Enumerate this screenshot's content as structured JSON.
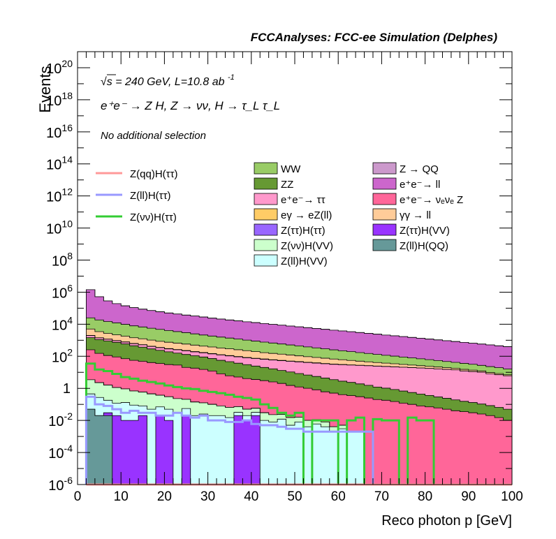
{
  "chart_data": {
    "type": "histogram",
    "title": "FCCAnalyses: FCC-ee Simulation (Delphes)",
    "xlabel": "Reco photon p [GeV]",
    "ylabel": "Events",
    "xlim": [
      0,
      100
    ],
    "ylim": [
      1e-06,
      1e+21
    ],
    "yscale": "log",
    "x_ticks": [
      "0",
      "10",
      "20",
      "30",
      "40",
      "50",
      "60",
      "70",
      "80",
      "90",
      "100"
    ],
    "y_ticks": [
      {
        "value": 1e+20,
        "mantissa": "10",
        "exp": "20"
      },
      {
        "value": 1e+18,
        "mantissa": "10",
        "exp": "18"
      },
      {
        "value": 1e+16,
        "mantissa": "10",
        "exp": "16"
      },
      {
        "value": 100000000000000.0,
        "mantissa": "10",
        "exp": "14"
      },
      {
        "value": 1000000000000.0,
        "mantissa": "10",
        "exp": "12"
      },
      {
        "value": 10000000000.0,
        "mantissa": "10",
        "exp": "10"
      },
      {
        "value": 100000000.0,
        "mantissa": "10",
        "exp": "8"
      },
      {
        "value": 1000000.0,
        "mantissa": "10",
        "exp": "6"
      },
      {
        "value": 10000.0,
        "mantissa": "10",
        "exp": "4"
      },
      {
        "value": 100.0,
        "mantissa": "10",
        "exp": "2"
      },
      {
        "value": 1,
        "mantissa": "1",
        "exp": ""
      },
      {
        "value": 0.01,
        "mantissa": "10",
        "exp": "-2"
      },
      {
        "value": 0.0001,
        "mantissa": "10",
        "exp": "-4"
      },
      {
        "value": 1e-06,
        "mantissa": "10",
        "exp": "-6"
      }
    ],
    "annotations": {
      "energy_prefix": "√s = 240 GeV, L=10.8 ab",
      "energy_sup": "-1",
      "process": "e⁺e⁻ → Z H, Z → νν, H → τ_L τ_L",
      "selection": "No additional selection"
    },
    "legend_signal": [
      {
        "name": "Z(qq)H(ττ)",
        "color": "#ff9999"
      },
      {
        "name": "Z(ll)H(ττ)",
        "color": "#9999ff"
      },
      {
        "name": "Z(νν)H(ττ)",
        "color": "#33cc33"
      }
    ],
    "legend_background_col1": [
      {
        "name": "WW",
        "color": "#99cc66"
      },
      {
        "name": "ZZ",
        "color": "#669933"
      },
      {
        "name": "e⁺e⁻→ ττ",
        "color": "#ff99cc"
      },
      {
        "name": "eγ → eZ(ll)",
        "color": "#ffcc66"
      },
      {
        "name": "Z(ττ)H(ττ)",
        "color": "#9966ff"
      },
      {
        "name": "Z(νν)H(VV)",
        "color": "#ccffcc"
      },
      {
        "name": "Z(ll)H(VV)",
        "color": "#ccffff"
      }
    ],
    "legend_background_col2": [
      {
        "name": "Z → QQ",
        "color": "#cc99cc"
      },
      {
        "name": "e⁺e⁻→ ll",
        "color": "#cc66cc"
      },
      {
        "name": "e⁺e⁻→ νₑνₑ Z",
        "color": "#ff6699"
      },
      {
        "name": "γγ → ll",
        "color": "#ffcc99"
      },
      {
        "name": "Z(ττ)H(VV)",
        "color": "#9933ff"
      },
      {
        "name": "Z(ll)H(QQ)",
        "color": "#669999"
      }
    ],
    "bins": {
      "start": 2,
      "width": 2,
      "count": 49
    },
    "stack_order": [
      "zllhqq",
      "ztthvv",
      "zllhvv",
      "zvvhvv",
      "ztthtt",
      "eeZ",
      "ee_vvZ",
      "zz",
      "eett",
      "zqq",
      "egeZll",
      "ww",
      "ggll",
      "eell"
    ],
    "stack_series": [
      {
        "key": "zllhqq",
        "name": "Z(ll)H(QQ)",
        "color": "#669999",
        "values": [
          0.05,
          0.02,
          0.02,
          0,
          0,
          0,
          0,
          0,
          0,
          0,
          0,
          0,
          0,
          0,
          0,
          0,
          0,
          0,
          0,
          0,
          0,
          0,
          0,
          0,
          0,
          0,
          0,
          0,
          0,
          0,
          0,
          0,
          0,
          0,
          0,
          0,
          0,
          0,
          0,
          0,
          0,
          0,
          0,
          0,
          0,
          0,
          0,
          0,
          0
        ]
      },
      {
        "key": "ztthvv",
        "name": "Z(ττ)H(VV)",
        "color": "#9933ff",
        "values": [
          0,
          0,
          0.01,
          0.02,
          0.01,
          0.01,
          0.02,
          0,
          0.02,
          0.01,
          0,
          0.02,
          0,
          0,
          0,
          0,
          0,
          0.02,
          0.01,
          0.02,
          0,
          0,
          0,
          0,
          0,
          0,
          0,
          0,
          0,
          0,
          0,
          0,
          0,
          0,
          0,
          0,
          0,
          0,
          0,
          0,
          0,
          0,
          0,
          0,
          0,
          0,
          0,
          0,
          0
        ]
      },
      {
        "key": "zllhvv",
        "name": "Z(ll)H(VV)",
        "color": "#ccffff",
        "values": [
          0.4,
          0.25,
          0.15,
          0.1,
          0.12,
          0.08,
          0.06,
          0.05,
          0.05,
          0.04,
          0.03,
          0.035,
          0.02,
          0.025,
          0.02,
          0.02,
          0.015,
          0.012,
          0.01,
          0.012,
          0.01,
          0.008,
          0.012,
          0.005,
          0.008,
          0.004,
          0.006,
          0.004,
          0.002,
          0.003,
          0.002,
          0.002,
          0,
          0,
          0,
          0,
          0,
          0,
          0,
          0,
          0,
          0,
          0,
          0,
          0,
          0,
          0,
          0,
          0
        ]
      },
      {
        "key": "zvvhvv",
        "name": "Z(νν)H(VV)",
        "color": "#ccffcc",
        "values": [
          3,
          2,
          1.4,
          1,
          0.8,
          0.6,
          0.5,
          0.4,
          0.3,
          0.25,
          0.2,
          0.15,
          0.12,
          0.1,
          0.08,
          0.06,
          0.05,
          0.04,
          0.03,
          0.025,
          0.02,
          0.015,
          0.012,
          0.01,
          0.008,
          0.006,
          0.005,
          0.004,
          0.002,
          0.002,
          0,
          0,
          0,
          0,
          0,
          0,
          0,
          0,
          0,
          0,
          0,
          0,
          0,
          0,
          0,
          0,
          0,
          0,
          0
        ]
      },
      {
        "key": "ztthtt",
        "name": "Z(ττ)H(ττ)",
        "color": "#9966ff",
        "values": [
          0,
          0,
          0,
          0,
          0,
          0,
          0,
          0,
          0,
          0,
          0,
          0,
          0,
          0,
          0,
          0,
          0,
          0,
          0,
          0,
          0,
          0,
          0,
          0,
          0,
          0,
          0,
          0,
          0,
          0,
          0,
          0,
          0,
          0,
          0,
          0,
          0,
          0,
          0,
          0,
          0,
          0,
          0,
          0,
          0,
          0,
          0,
          0,
          0
        ]
      },
      {
        "key": "eeZ",
        "name": "eγ → eZ(ll)",
        "color": "#ffcc66",
        "values": [
          0,
          0,
          0,
          0,
          0,
          0,
          0,
          0,
          0,
          0,
          0,
          0,
          0,
          0,
          0,
          0,
          0,
          0,
          0,
          0,
          0,
          0,
          0,
          0,
          0,
          0,
          0,
          0,
          0,
          0,
          0,
          0,
          0,
          0,
          0,
          0,
          0,
          0,
          0,
          0,
          0,
          0,
          0,
          0,
          0,
          0,
          0,
          0,
          0
        ]
      },
      {
        "key": "ee_vvZ",
        "name": "e⁺e⁻→ νₑνₑ Z",
        "color": "#ff6699",
        "values": [
          250,
          150,
          110,
          90,
          70,
          55,
          48,
          40,
          35,
          30,
          28,
          20,
          18,
          15,
          12,
          8,
          6,
          5,
          4,
          3.5,
          3,
          2.5,
          2,
          1.5,
          1.2,
          1,
          0.8,
          0.6,
          0.5,
          0.4,
          0.35,
          0.3,
          0.25,
          0.2,
          0.18,
          0.15,
          0.12,
          0.1,
          0.08,
          0.07,
          0.06,
          0.05,
          0.04,
          0.035,
          0.03,
          0.025,
          0.02,
          0.015,
          0.01
        ]
      },
      {
        "key": "zz",
        "name": "ZZ",
        "color": "#669933",
        "values": [
          1200,
          950,
          800,
          650,
          520,
          400,
          320,
          250,
          200,
          160,
          130,
          110,
          90,
          75,
          60,
          48,
          40,
          32,
          26,
          21,
          17,
          14,
          11,
          9,
          7.2,
          5.8,
          4.7,
          3.8,
          3.0,
          2.4,
          2.0,
          1.6,
          1.3,
          1.0,
          0.85,
          0.7,
          0.56,
          0.45,
          0.36,
          0.29,
          0.23,
          0.19,
          0.15,
          0.12,
          0.1,
          0.08,
          0.064,
          0.05,
          0.04
        ]
      },
      {
        "key": "eett",
        "name": "e⁺e⁻→ ττ",
        "color": "#ff99cc",
        "values": [
          500,
          300,
          250,
          200,
          180,
          160,
          150,
          120,
          110,
          100,
          95,
          90,
          80,
          75,
          70,
          65,
          60,
          55,
          50,
          48,
          45,
          42,
          40,
          38,
          36,
          34,
          32,
          30,
          28,
          27,
          26,
          25,
          24,
          23,
          22,
          21,
          20,
          19,
          18,
          17,
          16,
          15,
          14,
          12,
          11,
          10,
          8,
          7,
          6
        ]
      },
      {
        "key": "zqq",
        "name": "Z → QQ",
        "color": "#cc99cc",
        "values": [
          50,
          30,
          25,
          20,
          20,
          15,
          15,
          12,
          12,
          10,
          10,
          8,
          8,
          6,
          6,
          5,
          5,
          4,
          4,
          3,
          3,
          2.5,
          2.5,
          2,
          2,
          1.5,
          1.5,
          1.2,
          1,
          0.9,
          0.8,
          0.7,
          0.6,
          0.5,
          0.4,
          0.3,
          0.25,
          0.2,
          0.15,
          0.12,
          0.1,
          0.08,
          0.06,
          0.05,
          0.04,
          0.03,
          0.02,
          0.015,
          0.01
        ]
      },
      {
        "key": "egeZll",
        "name": "γγ → ll",
        "color": "#ffcc99",
        "values": [
          3000,
          2000,
          1500,
          1200,
          1000,
          800,
          700,
          600,
          500,
          450,
          400,
          350,
          300,
          260,
          230,
          200,
          180,
          160,
          140,
          120,
          100,
          90,
          80,
          70,
          60,
          52,
          45,
          40,
          35,
          30,
          26,
          22,
          19,
          16,
          14,
          12,
          10,
          8.5,
          7.2,
          6,
          5,
          4.2,
          3.5,
          3,
          2.5,
          2,
          1.6,
          1.3,
          1
        ]
      },
      {
        "key": "ww",
        "name": "WW",
        "color": "#99cc66",
        "values": [
          20000,
          15000,
          12000,
          10000,
          8000,
          6500,
          5500,
          4600,
          3900,
          3300,
          2800,
          2400,
          2000,
          1700,
          1450,
          1250,
          1080,
          930,
          800,
          690,
          600,
          520,
          450,
          390,
          340,
          290,
          250,
          215,
          185,
          160,
          140,
          120,
          105,
          90,
          78,
          68,
          59,
          51,
          44,
          38,
          33,
          28,
          24,
          21,
          18,
          15,
          13,
          11,
          9
        ]
      },
      {
        "key": "ggll",
        "name": "e⁺e⁻→ ll",
        "color": "#cc66cc",
        "values": [
          1400000,
          500000,
          270000,
          180000,
          130000,
          100000,
          80000,
          66000,
          55000,
          46000,
          40000,
          34000,
          30000,
          26000,
          22000,
          19500,
          17000,
          15000,
          13200,
          11700,
          10300,
          9100,
          8100,
          7200,
          6400,
          5700,
          5100,
          4500,
          4000,
          3600,
          3200,
          2850,
          2550,
          2250,
          2000,
          1800,
          1600,
          1420,
          1260,
          1120,
          1000,
          890,
          790,
          700,
          620,
          550,
          490,
          430,
          380
        ]
      },
      {
        "key": "eell",
        "name": "e⁺e⁻→ ll",
        "color": "#cc66cc",
        "values": [
          0,
          0,
          0,
          0,
          0,
          0,
          0,
          0,
          0,
          0,
          0,
          0,
          0,
          0,
          0,
          0,
          0,
          0,
          0,
          0,
          0,
          0,
          0,
          0,
          0,
          0,
          0,
          0,
          0,
          0,
          0,
          0,
          0,
          0,
          0,
          0,
          0,
          0,
          0,
          0,
          0,
          0,
          0,
          0,
          0,
          0,
          0,
          0,
          0
        ]
      }
    ],
    "signal_series": [
      {
        "name": "Z(νν)H(ττ)",
        "color": "#33cc33",
        "values": [
          35,
          15,
          12,
          8,
          5,
          4,
          3,
          2.5,
          2,
          1.5,
          1.2,
          1,
          0.9,
          0.7,
          0.6,
          0.5,
          0.4,
          0.3,
          0.25,
          0.2,
          0.1,
          0.06,
          0.03,
          0.02,
          0.03,
          0,
          0.01,
          0.01,
          0.01,
          0,
          0.01,
          0.015,
          0,
          0.012,
          0.01,
          0.01,
          0,
          0.015,
          0.01,
          0.01,
          0,
          0,
          0,
          0,
          0,
          0,
          0,
          0,
          0
        ]
      },
      {
        "name": "Z(ll)H(ττ)",
        "color": "#9999ff",
        "values": [
          0.3,
          0.1,
          0.08,
          0.05,
          0.03,
          0.04,
          0.03,
          0.03,
          0.02,
          0.02,
          0.03,
          0.02,
          0.015,
          0.02,
          0.01,
          0.01,
          0.008,
          0.008,
          0.01,
          0.006,
          0.005,
          0.005,
          0.004,
          0.003,
          0.003,
          0.002,
          0.002,
          0.002,
          0.002,
          0.002,
          0.002,
          0.002,
          0.002,
          0,
          0,
          0,
          0,
          0,
          0,
          0,
          0,
          0,
          0,
          0,
          0,
          0,
          0,
          0,
          0
        ]
      },
      {
        "name": "Z(qq)H(ττ)",
        "color": "#ff9999",
        "values": [
          0,
          0,
          0,
          0,
          0,
          0,
          0,
          0,
          0,
          0,
          0,
          0,
          0,
          0,
          0,
          0,
          0,
          0,
          0,
          0,
          0,
          0,
          0,
          0,
          0,
          0,
          0,
          0,
          0,
          0,
          0,
          0,
          0,
          0,
          0,
          0,
          0,
          0,
          0,
          0,
          0,
          0,
          0,
          0,
          0,
          0,
          0,
          0,
          0
        ]
      }
    ]
  }
}
